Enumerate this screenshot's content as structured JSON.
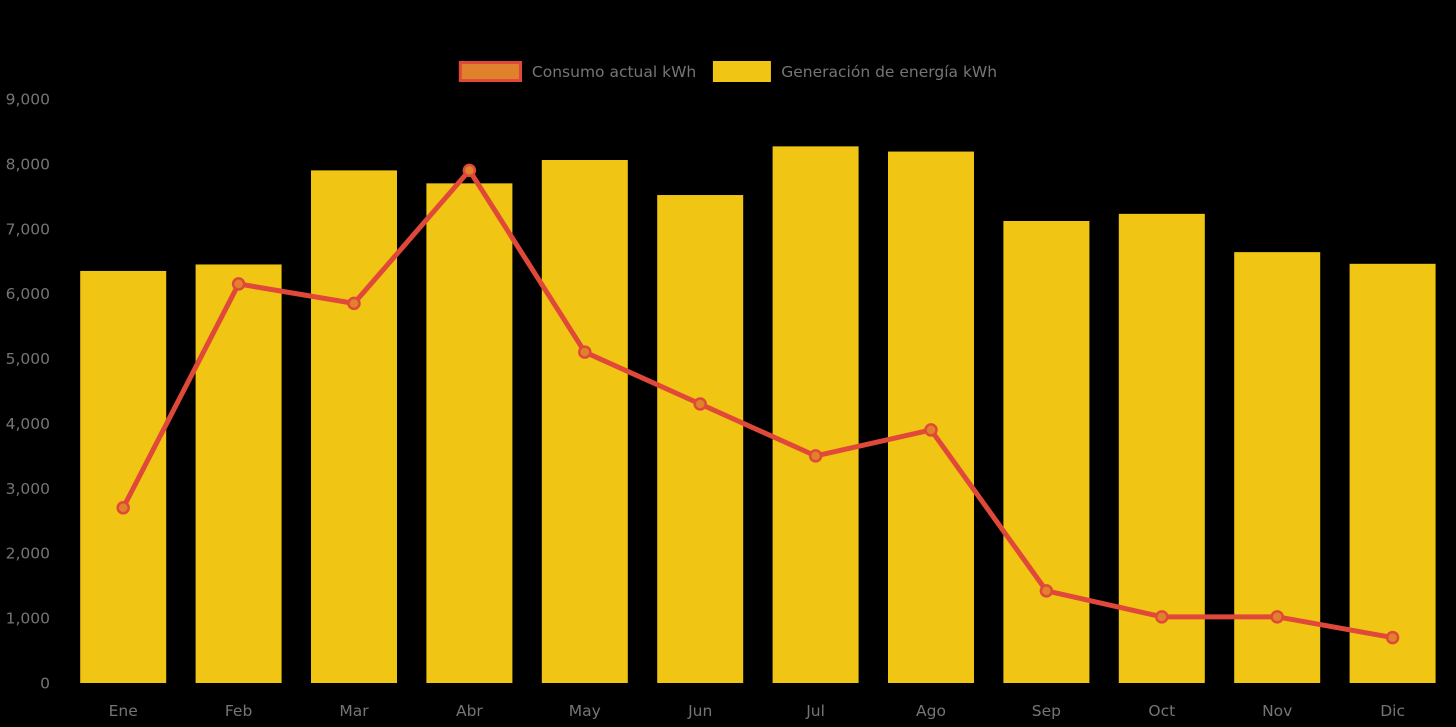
{
  "chart_data": {
    "type": "combo",
    "title": "",
    "xlabel": "",
    "ylabel": "",
    "categories": [
      "Ene",
      "Feb",
      "Mar",
      "Abr",
      "May",
      "Jun",
      "Jul",
      "Ago",
      "Sep",
      "Oct",
      "Nov",
      "Dic"
    ],
    "series": [
      {
        "name": "Consumo actual kWh",
        "type": "line",
        "values": [
          2700,
          6150,
          5850,
          7900,
          5100,
          4300,
          3500,
          3900,
          1420,
          1020,
          1020,
          700
        ]
      },
      {
        "name": "Generación de energía kWh",
        "type": "bar",
        "values": [
          6350,
          6450,
          7900,
          7700,
          8060,
          7520,
          8270,
          8190,
          7120,
          7230,
          6640,
          6460
        ]
      }
    ],
    "ylim": [
      0,
      9000
    ],
    "ytick_step": 1000,
    "y_ticks": [
      "0",
      "1,000",
      "2,000",
      "3,000",
      "4,000",
      "5,000",
      "6,000",
      "7,000",
      "8,000",
      "9,000"
    ],
    "grid": false,
    "legend_position": "top-center"
  },
  "colors": {
    "background": "#000000",
    "bar": "#F0C514",
    "line": "#E0493A",
    "marker_fill": "#E0812C",
    "axis_text": "#757575"
  }
}
